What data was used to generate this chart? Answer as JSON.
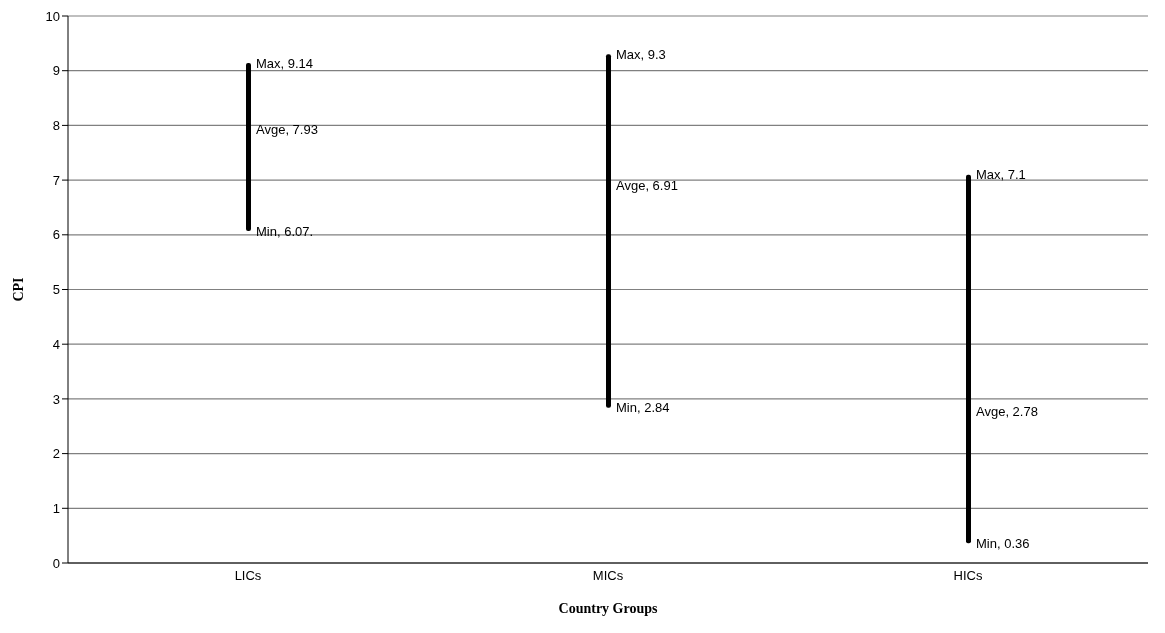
{
  "chart_data": {
    "type": "bar",
    "xlabel": "Country Groups",
    "ylabel": "CPI",
    "categories": [
      "LICs",
      "MICs",
      "HICs"
    ],
    "base": [
      6.07,
      2.84,
      0.36
    ],
    "values": [
      3.07,
      6.46,
      6.74
    ],
    "color": "#000000",
    "ylim": [
      0,
      10
    ],
    "yticks": [
      0,
      1,
      2,
      3,
      4,
      5,
      6,
      7,
      8,
      9,
      10
    ],
    "grid": "y",
    "annotations": [
      {
        "text": "Max, 9.14",
        "x": "LICs",
        "y": 9.14
      },
      {
        "text": "Avge, 7.93",
        "x": "LICs",
        "y": 7.93
      },
      {
        "text": "Min, 6.07.",
        "x": "LICs",
        "y": 6.07
      },
      {
        "text": "Max, 9.3",
        "x": "MICs",
        "y": 9.3
      },
      {
        "text": "Avge, 6.91",
        "x": "MICs",
        "y": 6.91
      },
      {
        "text": "Min, 2.84",
        "x": "MICs",
        "y": 2.84
      },
      {
        "text": "Max, 7.1",
        "x": "HICs",
        "y": 7.1
      },
      {
        "text": "Avge, 2.78",
        "x": "HICs",
        "y": 2.78
      },
      {
        "text": "Min, 0.36",
        "x": "HICs",
        "y": 0.36
      }
    ]
  }
}
